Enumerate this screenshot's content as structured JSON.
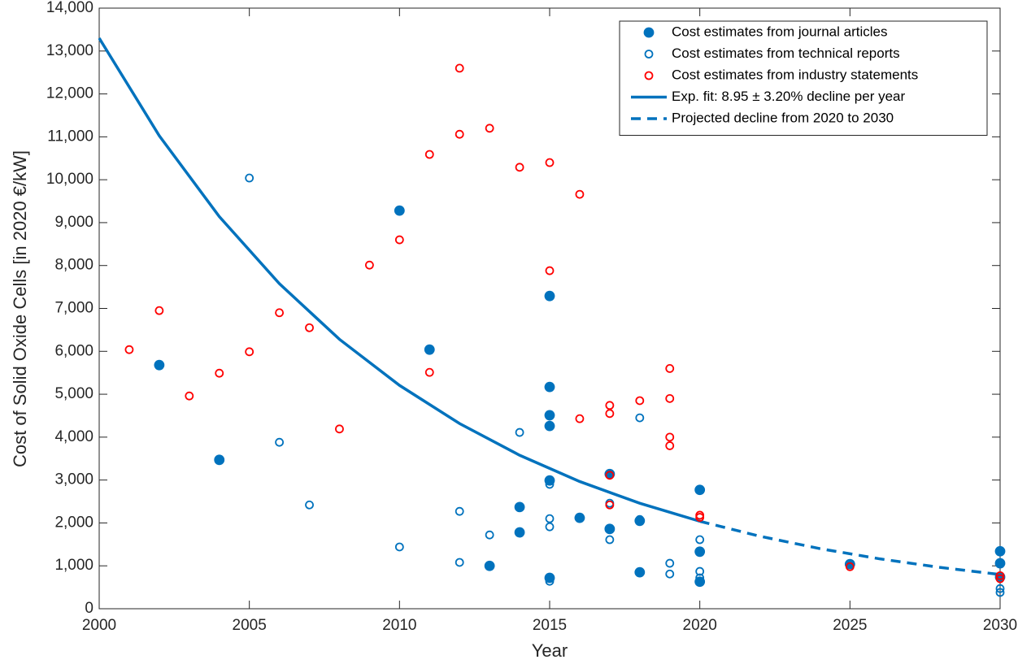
{
  "chart_data": {
    "type": "scatter",
    "xlabel": "Year",
    "ylabel": "Cost of Solid Oxide Cells [in 2020 €/kW]",
    "xlim": [
      2000,
      2030
    ],
    "xticks": [
      2000,
      2005,
      2010,
      2015,
      2020,
      2025,
      2030
    ],
    "ylim": [
      0,
      14000
    ],
    "yticks": [
      0,
      {
        "value": 1000,
        "label": "1,000"
      },
      {
        "value": 2000,
        "label": "2,000"
      },
      {
        "value": 3000,
        "label": "3,000"
      },
      {
        "value": 4000,
        "label": "4,000"
      },
      {
        "value": 5000,
        "label": "5,000"
      },
      {
        "value": 6000,
        "label": "6,000"
      },
      {
        "value": 7000,
        "label": "7,000"
      },
      {
        "value": 8000,
        "label": "8,000"
      },
      {
        "value": 9000,
        "label": "9,000"
      },
      {
        "value": 10000,
        "label": "10,000"
      },
      {
        "value": 11000,
        "label": "11,000"
      },
      {
        "value": 12000,
        "label": "12,000"
      },
      {
        "value": 13000,
        "label": "13,000"
      },
      {
        "value": 14000,
        "label": "14,000"
      }
    ],
    "legend": "upper right",
    "series": [
      {
        "name": "Cost estimates from journal articles",
        "color": "#0072bd",
        "style": "filled",
        "x": [
          2002,
          2004,
          2010,
          2011,
          2013,
          2014,
          2014,
          2015,
          2015,
          2015,
          2015,
          2015,
          2015,
          2016,
          2017,
          2017,
          2018,
          2018,
          2020,
          2020,
          2020,
          2025,
          2030,
          2030,
          2030
        ],
        "values": [
          5680,
          3470,
          9280,
          6040,
          1000,
          2370,
          1780,
          7290,
          5170,
          4510,
          4260,
          2990,
          720,
          2120,
          3140,
          1860,
          2050,
          850,
          2770,
          1330,
          630,
          1040,
          1340,
          1060,
          740
        ]
      },
      {
        "name": "Cost estimates from technical reports",
        "color": "#0072bd",
        "style": "hollow",
        "x": [
          2005,
          2006,
          2007,
          2010,
          2012,
          2012,
          2013,
          2014,
          2015,
          2015,
          2015,
          2015,
          2016,
          2017,
          2017,
          2018,
          2018,
          2019,
          2019,
          2020,
          2020,
          2020,
          2030,
          2030
        ],
        "values": [
          10040,
          3880,
          2420,
          1440,
          2270,
          1080,
          1720,
          4110,
          2900,
          2100,
          1910,
          640,
          2120,
          2460,
          1610,
          4450,
          2080,
          1060,
          810,
          1610,
          870,
          720,
          470,
          380
        ]
      },
      {
        "name": "Cost estimates from industry statements",
        "color": "#ff0000",
        "style": "hollow",
        "x": [
          2001,
          2002,
          2003,
          2004,
          2005,
          2006,
          2007,
          2008,
          2009,
          2010,
          2011,
          2011,
          2012,
          2012,
          2013,
          2014,
          2015,
          2015,
          2016,
          2016,
          2017,
          2017,
          2017,
          2017,
          2018,
          2019,
          2019,
          2019,
          2019,
          2020,
          2020,
          2025,
          2030,
          2030
        ],
        "values": [
          6040,
          6950,
          4960,
          5490,
          5990,
          6900,
          6550,
          4190,
          8010,
          8600,
          10590,
          5510,
          12600,
          11060,
          11200,
          10290,
          10400,
          7880,
          9660,
          4430,
          4740,
          4550,
          3110,
          2420,
          4850,
          5600,
          4900,
          4000,
          3800,
          2180,
          2130,
          980,
          770,
          700
        ]
      },
      {
        "name": "Exp. fit: 8.95 ± 3.20% decline per year",
        "color": "#0072bd",
        "style": "line",
        "x": [
          2000,
          2002,
          2004,
          2006,
          2008,
          2010,
          2012,
          2014,
          2016,
          2018,
          2020
        ],
        "values": [
          13300,
          11026,
          9140,
          7577,
          6281,
          5207,
          4317,
          3578,
          2966,
          2459,
          2039
        ]
      },
      {
        "name": "Projected decline from 2020 to 2030",
        "color": "#0072bd",
        "style": "dashed",
        "x": [
          2020,
          2022,
          2024,
          2026,
          2028,
          2030
        ],
        "values": [
          2039,
          1690,
          1401,
          1162,
          963,
          798
        ]
      }
    ]
  }
}
